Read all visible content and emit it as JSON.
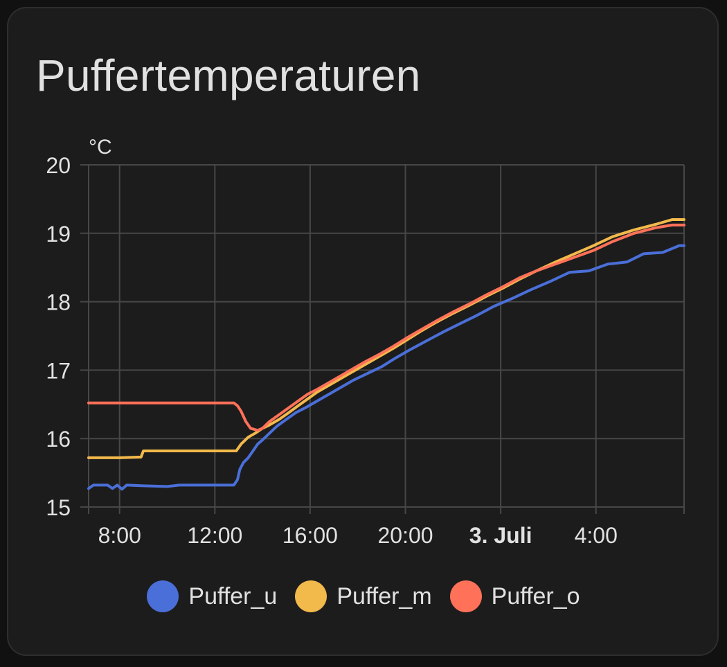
{
  "card": {
    "title": "Puffertemperaturen"
  },
  "chart_data": {
    "type": "line",
    "title": "Puffertemperaturen",
    "ylabel": "°C",
    "xlabel": "",
    "x_unit": "hours since 0:00 on 2 July",
    "xlim": [
      6.7,
      31.7
    ],
    "ylim": [
      15,
      20
    ],
    "grid": true,
    "legend_position": "bottom",
    "y_ticks": [
      15,
      16,
      17,
      18,
      19,
      20
    ],
    "x_ticks": [
      {
        "x": 8,
        "label": "8:00",
        "bold": false
      },
      {
        "x": 12,
        "label": "12:00",
        "bold": false
      },
      {
        "x": 16,
        "label": "16:00",
        "bold": false
      },
      {
        "x": 20,
        "label": "20:00",
        "bold": false
      },
      {
        "x": 24,
        "label": "3. Juli",
        "bold": true
      },
      {
        "x": 28,
        "label": "4:00",
        "bold": false
      }
    ],
    "series": [
      {
        "name": "Puffer_u",
        "color": "#4a6fd8",
        "points": [
          [
            6.7,
            15.27
          ],
          [
            6.9,
            15.32
          ],
          [
            7.5,
            15.32
          ],
          [
            7.7,
            15.27
          ],
          [
            7.9,
            15.32
          ],
          [
            8.1,
            15.26
          ],
          [
            8.3,
            15.32
          ],
          [
            9.0,
            15.31
          ],
          [
            10.0,
            15.3
          ],
          [
            10.5,
            15.32
          ],
          [
            12.8,
            15.32
          ],
          [
            12.95,
            15.4
          ],
          [
            13.05,
            15.55
          ],
          [
            13.2,
            15.65
          ],
          [
            13.4,
            15.72
          ],
          [
            13.6,
            15.82
          ],
          [
            13.8,
            15.92
          ],
          [
            14.0,
            15.98
          ],
          [
            14.3,
            16.08
          ],
          [
            14.6,
            16.18
          ],
          [
            15.0,
            16.28
          ],
          [
            15.4,
            16.38
          ],
          [
            15.8,
            16.45
          ],
          [
            16.3,
            16.55
          ],
          [
            16.8,
            16.65
          ],
          [
            17.3,
            16.75
          ],
          [
            17.8,
            16.85
          ],
          [
            18.4,
            16.95
          ],
          [
            19.0,
            17.05
          ],
          [
            19.6,
            17.18
          ],
          [
            20.2,
            17.3
          ],
          [
            20.9,
            17.43
          ],
          [
            21.6,
            17.56
          ],
          [
            22.3,
            17.68
          ],
          [
            23.0,
            17.8
          ],
          [
            23.7,
            17.93
          ],
          [
            24.5,
            18.05
          ],
          [
            25.3,
            18.18
          ],
          [
            26.1,
            18.3
          ],
          [
            26.9,
            18.43
          ],
          [
            27.7,
            18.45
          ],
          [
            28.5,
            18.55
          ],
          [
            29.3,
            18.58
          ],
          [
            30.0,
            18.7
          ],
          [
            30.8,
            18.72
          ],
          [
            31.5,
            18.82
          ],
          [
            31.7,
            18.82
          ]
        ]
      },
      {
        "name": "Puffer_m",
        "color": "#f2b94b",
        "points": [
          [
            6.7,
            15.72
          ],
          [
            8.0,
            15.72
          ],
          [
            8.9,
            15.73
          ],
          [
            9.0,
            15.82
          ],
          [
            12.0,
            15.82
          ],
          [
            12.9,
            15.82
          ],
          [
            13.1,
            15.92
          ],
          [
            13.4,
            16.02
          ],
          [
            13.7,
            16.08
          ],
          [
            14.0,
            16.15
          ],
          [
            14.3,
            16.2
          ],
          [
            14.7,
            16.28
          ],
          [
            15.1,
            16.38
          ],
          [
            15.5,
            16.48
          ],
          [
            15.9,
            16.58
          ],
          [
            16.3,
            16.68
          ],
          [
            16.8,
            16.78
          ],
          [
            17.3,
            16.88
          ],
          [
            17.8,
            16.98
          ],
          [
            18.3,
            17.08
          ],
          [
            18.9,
            17.2
          ],
          [
            19.5,
            17.32
          ],
          [
            20.1,
            17.45
          ],
          [
            20.7,
            17.58
          ],
          [
            21.3,
            17.7
          ],
          [
            22.0,
            17.83
          ],
          [
            22.7,
            17.95
          ],
          [
            23.4,
            18.08
          ],
          [
            24.1,
            18.2
          ],
          [
            24.8,
            18.33
          ],
          [
            25.5,
            18.45
          ],
          [
            26.3,
            18.58
          ],
          [
            27.1,
            18.7
          ],
          [
            27.9,
            18.82
          ],
          [
            28.7,
            18.95
          ],
          [
            29.6,
            19.05
          ],
          [
            30.5,
            19.13
          ],
          [
            31.2,
            19.2
          ],
          [
            31.7,
            19.2
          ]
        ]
      },
      {
        "name": "Puffer_o",
        "color": "#ff7158",
        "points": [
          [
            6.7,
            16.52
          ],
          [
            12.0,
            16.52
          ],
          [
            12.8,
            16.52
          ],
          [
            12.95,
            16.48
          ],
          [
            13.1,
            16.4
          ],
          [
            13.3,
            16.25
          ],
          [
            13.5,
            16.15
          ],
          [
            13.8,
            16.12
          ],
          [
            14.0,
            16.15
          ],
          [
            14.3,
            16.25
          ],
          [
            14.7,
            16.35
          ],
          [
            15.1,
            16.45
          ],
          [
            15.5,
            16.55
          ],
          [
            15.9,
            16.65
          ],
          [
            16.3,
            16.72
          ],
          [
            16.8,
            16.82
          ],
          [
            17.3,
            16.92
          ],
          [
            17.8,
            17.02
          ],
          [
            18.3,
            17.12
          ],
          [
            18.9,
            17.23
          ],
          [
            19.5,
            17.35
          ],
          [
            20.1,
            17.48
          ],
          [
            20.7,
            17.6
          ],
          [
            21.3,
            17.72
          ],
          [
            22.0,
            17.85
          ],
          [
            22.7,
            17.97
          ],
          [
            23.4,
            18.1
          ],
          [
            24.1,
            18.22
          ],
          [
            24.8,
            18.35
          ],
          [
            25.5,
            18.45
          ],
          [
            26.3,
            18.55
          ],
          [
            27.1,
            18.65
          ],
          [
            27.9,
            18.75
          ],
          [
            28.7,
            18.88
          ],
          [
            29.6,
            19.0
          ],
          [
            30.5,
            19.08
          ],
          [
            31.2,
            19.12
          ],
          [
            31.7,
            19.12
          ]
        ]
      }
    ]
  }
}
